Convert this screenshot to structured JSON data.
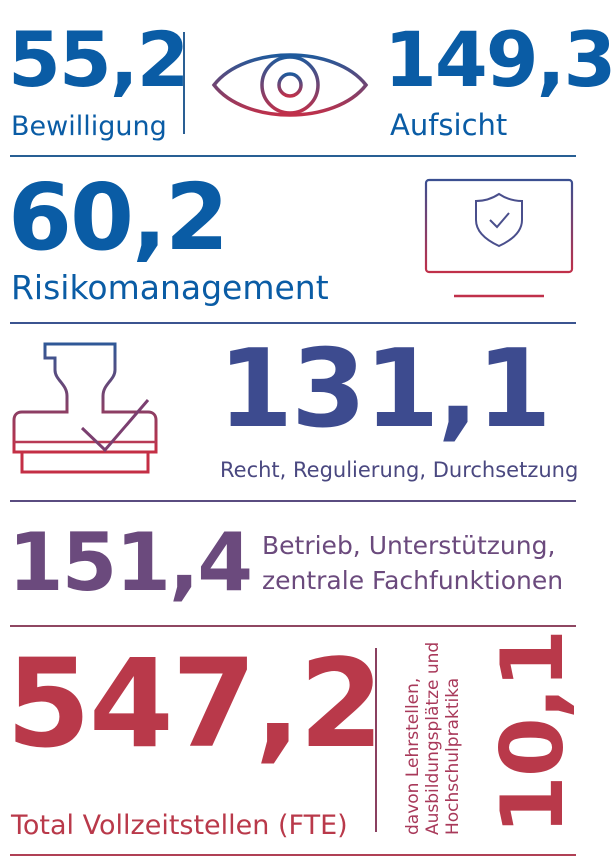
{
  "colors": {
    "blue": "#0a5ca5",
    "navy_purple": "#3d4b8f",
    "purple": "#6b4a7d",
    "red": "#b9394a",
    "divider_blue": "#285f94",
    "divider_red": "#b05060"
  },
  "row1": {
    "left_value": "55,2",
    "left_label": "Bewilligung",
    "icon": "eye-icon",
    "right_value": "149,3",
    "right_label": "Aufsicht"
  },
  "row2": {
    "value": "60,2",
    "label": "Risikomanagement",
    "icon": "monitor-shield-icon"
  },
  "row3": {
    "icon": "stamp-check-icon",
    "value": "131,1",
    "label": "Recht, Regulierung, Durchsetzung"
  },
  "row4": {
    "value": "151,4",
    "label_line1": "Betrieb, Unterstützung,",
    "label_line2": "zentrale Fachfunktionen"
  },
  "row5": {
    "value": "547,2",
    "label": "Total Vollzeitstellen (FTE)",
    "sub_value": "10,1",
    "sub_label_line1": "davon Lehrstellen,",
    "sub_label_line2": "Ausbildungsplätze und",
    "sub_label_line3": "Hochschulpraktika"
  }
}
